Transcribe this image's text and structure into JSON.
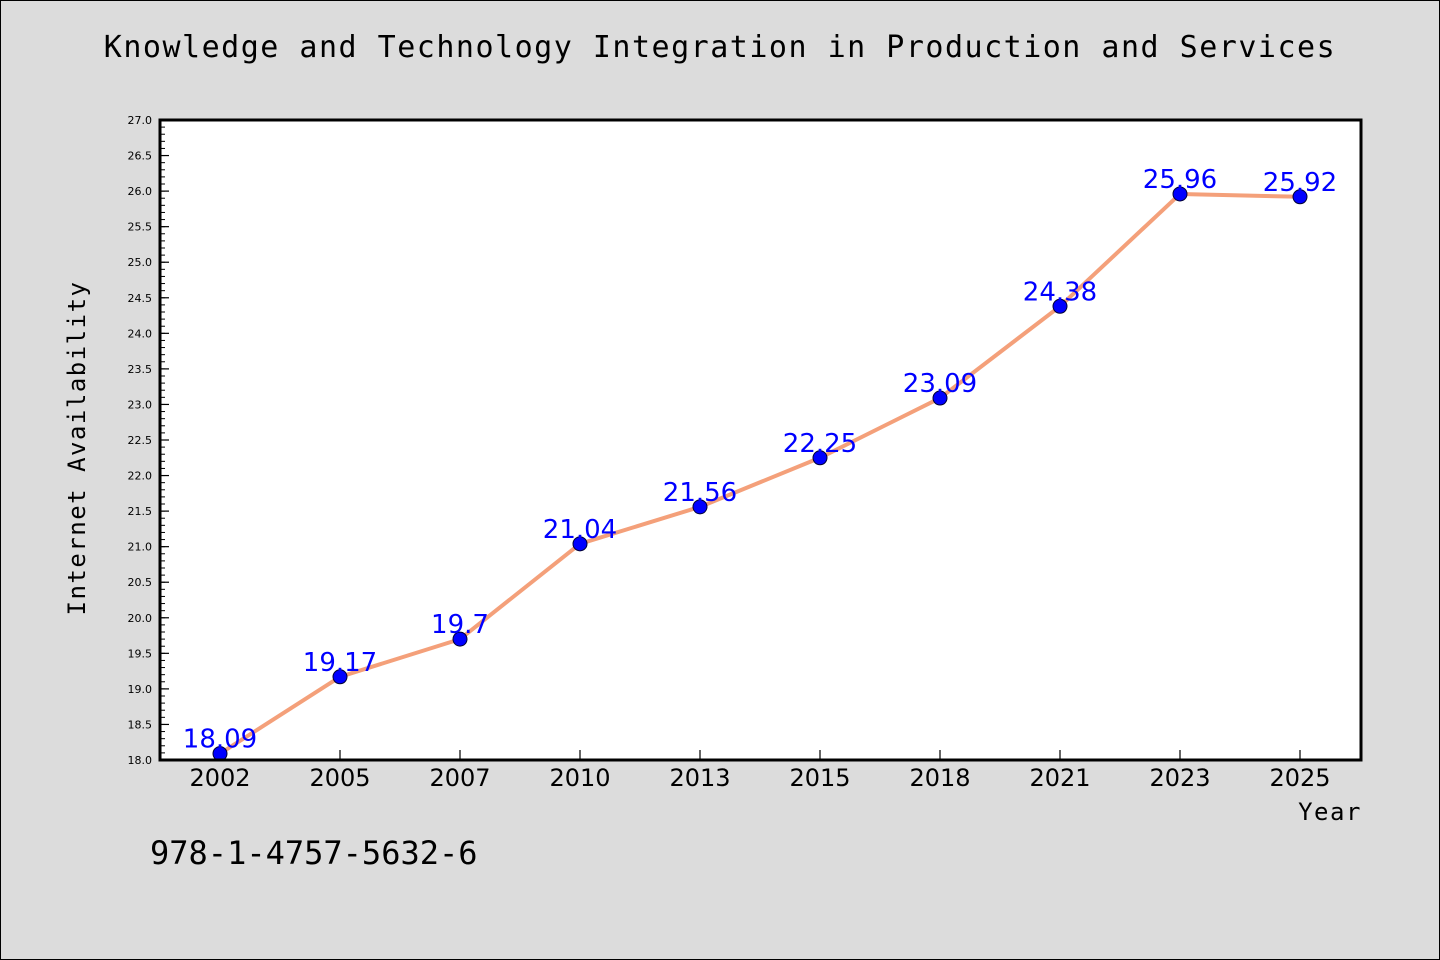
{
  "chart_data": {
    "type": "line",
    "title": "Knowledge and Technology Integration in Production and Services",
    "xlabel": "Year",
    "ylabel": "Internet Availability",
    "categories": [
      "2002",
      "2005",
      "2007",
      "2010",
      "2013",
      "2015",
      "2018",
      "2021",
      "2023",
      "2025"
    ],
    "series": [
      {
        "values": [
          18.09,
          19.17,
          19.7,
          21.04,
          21.56,
          22.25,
          23.09,
          24.38,
          25.96,
          25.92
        ],
        "labels": [
          "18.09",
          "19.17",
          "19.7",
          "21.04",
          "21.56",
          "22.25",
          "23.09",
          "24.38",
          "25.96",
          "25.92"
        ],
        "line_color": "#f4a07a",
        "marker_color": "#0000ff",
        "label_color": "#0000ff"
      }
    ],
    "ylim": [
      18.0,
      27.0
    ],
    "yticks": [
      "18.0",
      "18.5",
      "19.0",
      "19.5",
      "20.0",
      "20.5",
      "21.0",
      "21.5",
      "22.0",
      "22.5",
      "23.0",
      "23.5",
      "24.0",
      "24.5",
      "25.0",
      "25.5",
      "26.0",
      "26.5",
      "27.0"
    ],
    "grid": false,
    "legend": "none"
  },
  "footer": {
    "isbn": "978-1-4757-5632-6"
  }
}
